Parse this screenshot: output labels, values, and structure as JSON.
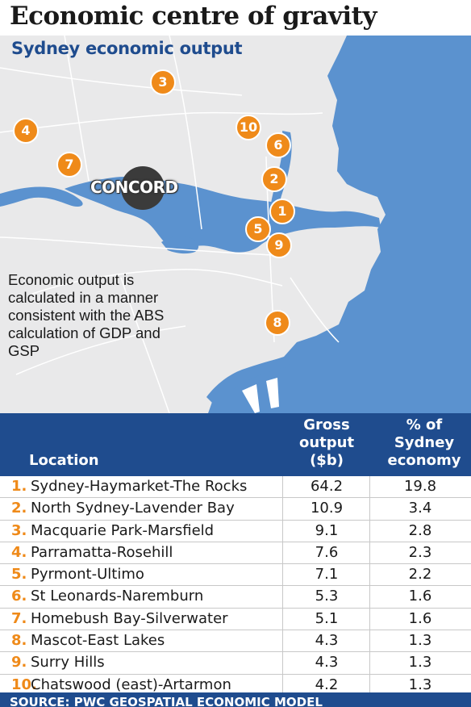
{
  "title": "Economic centre of gravity",
  "subtitle": "Sydney economic output",
  "map": {
    "highlight_label": "CONCORD",
    "note": "Economic output is calculated in a manner consistent with the ABS calculation of GDP and GSP",
    "markers": [
      {
        "n": "1",
        "place": "Sydney-Haymarket-The Rocks"
      },
      {
        "n": "2",
        "place": "North Sydney-Lavender Bay"
      },
      {
        "n": "3",
        "place": "Macquarie Park-Marsfield"
      },
      {
        "n": "4",
        "place": "Parramatta-Rosehill"
      },
      {
        "n": "5",
        "place": "Pyrmont-Ultimo"
      },
      {
        "n": "6",
        "place": "St Leonards-Naremburn"
      },
      {
        "n": "7",
        "place": "Homebush Bay-Silverwater"
      },
      {
        "n": "8",
        "place": "Mascot-East Lakes"
      },
      {
        "n": "9",
        "place": "Surry Hills"
      },
      {
        "n": "10",
        "place": "Chatswood (east)-Artarmon"
      }
    ],
    "colors": {
      "water": "#5b92cf",
      "land": "#e9e9ea",
      "marker": "#ef8a19",
      "concord": "#3b3b3b"
    }
  },
  "table": {
    "headers": {
      "location": "Location",
      "gross": [
        "Gross",
        "output",
        "($b)"
      ],
      "pct": [
        "% of",
        "Sydney",
        "economy"
      ]
    },
    "rows": [
      {
        "num": "1.",
        "location": "Sydney-Haymarket-The Rocks",
        "gross": "64.2",
        "pct": "19.8"
      },
      {
        "num": "2.",
        "location": "North Sydney-Lavender Bay",
        "gross": "10.9",
        "pct": "3.4"
      },
      {
        "num": "3.",
        "location": "Macquarie Park-Marsfield",
        "gross": "9.1",
        "pct": "2.8"
      },
      {
        "num": "4.",
        "location": "Parramatta-Rosehill",
        "gross": "7.6",
        "pct": "2.3"
      },
      {
        "num": "5.",
        "location": "Pyrmont-Ultimo",
        "gross": "7.1",
        "pct": "2.2"
      },
      {
        "num": "6.",
        "location": "St Leonards-Naremburn",
        "gross": "5.3",
        "pct": "1.6"
      },
      {
        "num": "7.",
        "location": "Homebush Bay-Silverwater",
        "gross": "5.1",
        "pct": "1.6"
      },
      {
        "num": "8.",
        "location": "Mascot-East Lakes",
        "gross": "4.3",
        "pct": "1.3"
      },
      {
        "num": "9.",
        "location": "Surry Hills",
        "gross": "4.3",
        "pct": "1.3"
      },
      {
        "num": "10.",
        "location": "Chatswood (east)-Artarmon",
        "gross": "4.2",
        "pct": "1.3"
      }
    ],
    "source": "SOURCE: PWC GEOSPATIAL ECONOMIC MODEL"
  },
  "colors": {
    "header_blue": "#1f4c8e",
    "accent_orange": "#ef8a19"
  }
}
